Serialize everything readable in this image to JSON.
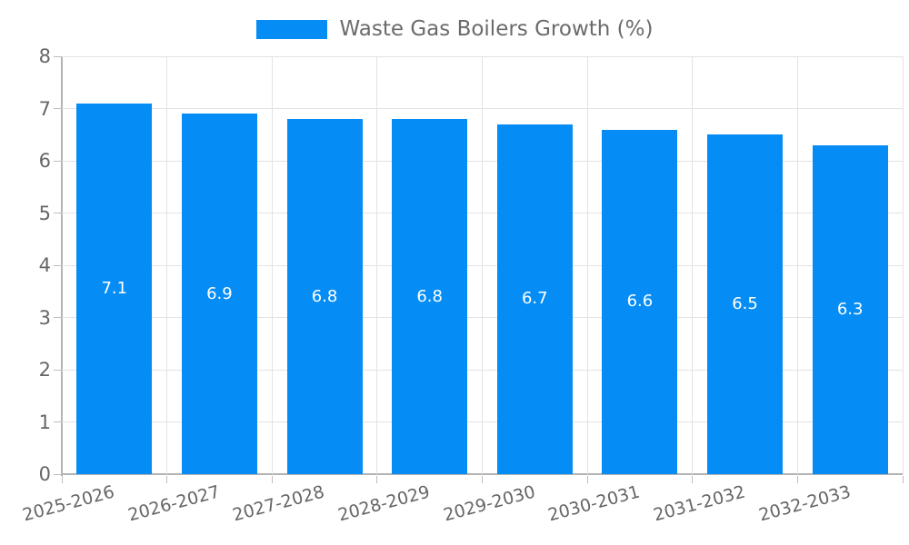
{
  "legend": {
    "label": "Waste Gas Boilers Growth (%)"
  },
  "chart_data": {
    "type": "bar",
    "title": "Waste Gas Boilers Growth (%)",
    "series_name": "Waste Gas Boilers Growth (%)",
    "categories": [
      "2025-2026",
      "2026-2027",
      "2027-2028",
      "2028-2029",
      "2029-2030",
      "2030-2031",
      "2031-2032",
      "2032-2033"
    ],
    "values": [
      7.1,
      6.9,
      6.8,
      6.8,
      6.7,
      6.6,
      6.5,
      6.3
    ],
    "xlabel": "",
    "ylabel": "",
    "ylim": [
      0,
      8
    ],
    "yticks": [
      0,
      1,
      2,
      3,
      4,
      5,
      6,
      7,
      8
    ],
    "grid": true,
    "legend_position": "top-center",
    "data_labels_position": "inside-center",
    "colors": {
      "bar": "#058df5",
      "grid": "#e3e3e3",
      "axis": "#b3b3b3",
      "tick": "#bdbdbd",
      "text": "#666666",
      "value_label": "#ffffff",
      "background": "#ffffff"
    }
  }
}
